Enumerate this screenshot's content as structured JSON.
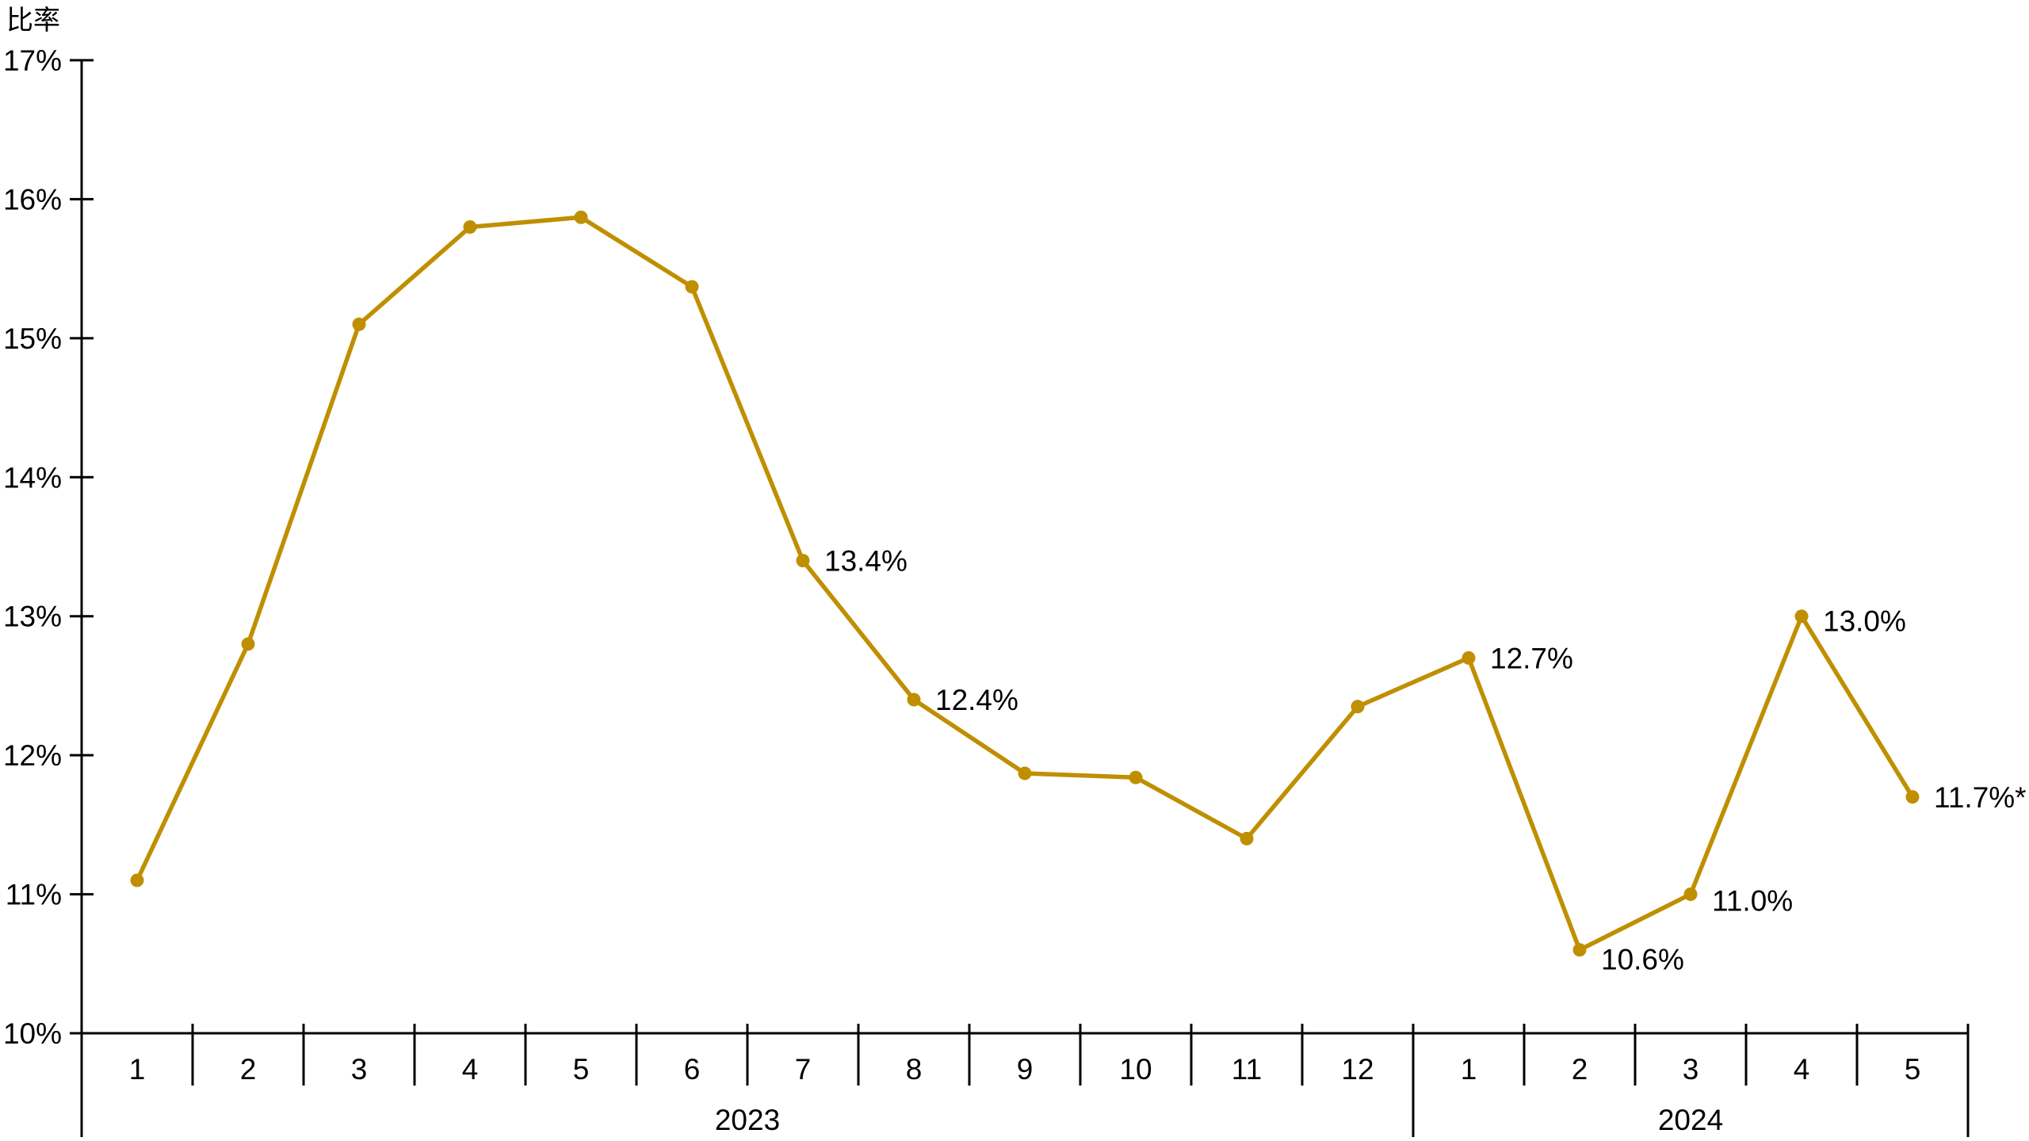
{
  "colors": {
    "background": "#FFFFFF",
    "line": "#BF8F00",
    "axis": "#000000",
    "text": "#000000"
  },
  "chart_data": {
    "type": "line",
    "title": "",
    "ylabel": "比率",
    "xlabel": "",
    "grid": false,
    "legend": false,
    "y_axis": {
      "min": 10,
      "max": 17,
      "step": 1,
      "tick_labels": [
        "10%",
        "11%",
        "12%",
        "13%",
        "14%",
        "15%",
        "16%",
        "17%"
      ]
    },
    "x_groups": [
      {
        "year": "2023",
        "months": [
          "1",
          "2",
          "3",
          "4",
          "5",
          "6",
          "7",
          "8",
          "9",
          "10",
          "11",
          "12"
        ]
      },
      {
        "year": "2024",
        "months": [
          "1",
          "2",
          "3",
          "4",
          "5"
        ]
      }
    ],
    "series": [
      {
        "name": "比率",
        "color": "#BF8F00",
        "points": [
          {
            "year": "2023",
            "month": "1",
            "value": 11.1,
            "label": null
          },
          {
            "year": "2023",
            "month": "2",
            "value": 12.8,
            "label": null
          },
          {
            "year": "2023",
            "month": "3",
            "value": 15.1,
            "label": null
          },
          {
            "year": "2023",
            "month": "4",
            "value": 15.8,
            "label": null
          },
          {
            "year": "2023",
            "month": "5",
            "value": 15.87,
            "label": null
          },
          {
            "year": "2023",
            "month": "6",
            "value": 15.37,
            "label": null
          },
          {
            "year": "2023",
            "month": "7",
            "value": 13.4,
            "label": "13.4%"
          },
          {
            "year": "2023",
            "month": "8",
            "value": 12.4,
            "label": "12.4%"
          },
          {
            "year": "2023",
            "month": "9",
            "value": 11.87,
            "label": null
          },
          {
            "year": "2023",
            "month": "10",
            "value": 11.84,
            "label": null
          },
          {
            "year": "2023",
            "month": "11",
            "value": 11.4,
            "label": null
          },
          {
            "year": "2023",
            "month": "12",
            "value": 12.35,
            "label": null
          },
          {
            "year": "2024",
            "month": "1",
            "value": 12.7,
            "label": "12.7%"
          },
          {
            "year": "2024",
            "month": "2",
            "value": 10.6,
            "label": "10.6%"
          },
          {
            "year": "2024",
            "month": "3",
            "value": 11.0,
            "label": "11.0%"
          },
          {
            "year": "2024",
            "month": "4",
            "value": 13.0,
            "label": "13.0%"
          },
          {
            "year": "2024",
            "month": "5",
            "value": 11.7,
            "label": "11.7%*"
          }
        ]
      }
    ]
  }
}
